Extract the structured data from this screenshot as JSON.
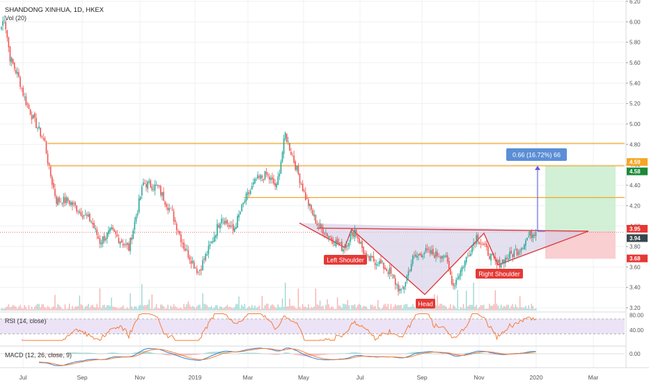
{
  "header": {
    "symbol_line": "SHANDONG XINHUA, 1D, HKEX",
    "volume_label": "Vol (20)"
  },
  "colors": {
    "up": "#26a69a",
    "down": "#ef5350",
    "orange_level": "#f6a623",
    "pattern_fill": "#d6cfe6",
    "pattern_line": "#e03a3e",
    "target_fill": "#c9edcf",
    "stop_fill": "#f8c7c9",
    "rsi_line": "#f57c36",
    "rsi_band": "#e8dcf5",
    "macd_line": "#3d7bc4",
    "signal_line": "#f57c36",
    "measure_box": "#5b8ed6",
    "grid": "#eef0f3"
  },
  "chart_data": [
    {
      "type": "candlestick",
      "title": "SHANDONG XINHUA, 1D, HKEX",
      "y_ticks": [
        "6.20",
        "6.00",
        "5.80",
        "5.60",
        "5.40",
        "5.20",
        "5.00",
        "4.80",
        "4.60",
        "4.40",
        "4.20",
        "4.00",
        "3.80",
        "3.60",
        "3.40",
        "3.20"
      ],
      "ylim": [
        3.17,
        6.22
      ],
      "x_ticks": [
        "Jul",
        "Sep",
        "Nov",
        "2019",
        "Mar",
        "May",
        "Jul",
        "Sep",
        "Nov",
        "2020",
        "Mar"
      ],
      "anchors": [
        {
          "t": 0,
          "v": 5.95
        },
        {
          "t": 2,
          "v": 6.05
        },
        {
          "t": 6,
          "v": 5.65
        },
        {
          "t": 12,
          "v": 5.45
        },
        {
          "t": 16,
          "v": 5.25
        },
        {
          "t": 22,
          "v": 5.05
        },
        {
          "t": 30,
          "v": 4.82
        },
        {
          "t": 33,
          "v": 4.55
        },
        {
          "t": 38,
          "v": 4.25
        },
        {
          "t": 46,
          "v": 4.25
        },
        {
          "t": 54,
          "v": 4.15
        },
        {
          "t": 62,
          "v": 4.05
        },
        {
          "t": 68,
          "v": 3.85
        },
        {
          "t": 76,
          "v": 3.95
        },
        {
          "t": 88,
          "v": 3.78
        },
        {
          "t": 98,
          "v": 4.42
        },
        {
          "t": 108,
          "v": 4.38
        },
        {
          "t": 118,
          "v": 4.12
        },
        {
          "t": 126,
          "v": 3.8
        },
        {
          "t": 136,
          "v": 3.55
        },
        {
          "t": 144,
          "v": 3.8
        },
        {
          "t": 152,
          "v": 4.1
        },
        {
          "t": 160,
          "v": 3.95
        },
        {
          "t": 168,
          "v": 4.25
        },
        {
          "t": 176,
          "v": 4.45
        },
        {
          "t": 183,
          "v": 4.5
        },
        {
          "t": 190,
          "v": 4.38
        },
        {
          "t": 196,
          "v": 4.9
        },
        {
          "t": 204,
          "v": 4.55
        },
        {
          "t": 210,
          "v": 4.28
        },
        {
          "t": 218,
          "v": 4.02
        },
        {
          "t": 228,
          "v": 3.88
        },
        {
          "t": 236,
          "v": 3.78
        },
        {
          "t": 244,
          "v": 3.96
        },
        {
          "t": 252,
          "v": 3.68
        },
        {
          "t": 260,
          "v": 3.65
        },
        {
          "t": 268,
          "v": 3.55
        },
        {
          "t": 276,
          "v": 3.34
        },
        {
          "t": 284,
          "v": 3.68
        },
        {
          "t": 292,
          "v": 3.75
        },
        {
          "t": 300,
          "v": 3.72
        },
        {
          "t": 306,
          "v": 3.72
        },
        {
          "t": 312,
          "v": 3.42
        },
        {
          "t": 320,
          "v": 3.65
        },
        {
          "t": 328,
          "v": 3.9
        },
        {
          "t": 334,
          "v": 3.78
        },
        {
          "t": 342,
          "v": 3.62
        },
        {
          "t": 350,
          "v": 3.7
        },
        {
          "t": 358,
          "v": 3.78
        },
        {
          "t": 364,
          "v": 3.9
        },
        {
          "t": 368,
          "v": 3.94
        }
      ],
      "levels": [
        {
          "value": 4.81,
          "label": "4.81",
          "kind": "orange"
        },
        {
          "value": 4.59,
          "label": "4.59",
          "kind": "orange"
        },
        {
          "value": 4.28,
          "label": "4.28",
          "kind": "orange"
        }
      ],
      "price_tags": [
        {
          "value": 4.59,
          "label": "4.59",
          "kind": "orange"
        },
        {
          "value": 4.58,
          "label": "4.58",
          "kind": "green"
        },
        {
          "value": 3.95,
          "label": "3.95",
          "kind": "red"
        },
        {
          "value": 3.94,
          "label": "3.94",
          "kind": "dark"
        },
        {
          "value": 3.68,
          "label": "3.68",
          "kind": "red"
        }
      ],
      "last_price": 3.94,
      "annotations": {
        "left_shoulder": "Left Shoulder",
        "head": "Head",
        "right_shoulder": "Right Shoulder",
        "measure": "0.66 (16.72%) 66"
      },
      "position": {
        "entry": 3.95,
        "target": 4.59,
        "stop": 3.68
      }
    },
    {
      "type": "line",
      "title": "RSI (14, close)",
      "y_ticks": [
        "80.00",
        "40.00"
      ],
      "ylim": [
        10,
        85
      ],
      "band": [
        30,
        70
      ]
    },
    {
      "type": "line",
      "title": "MACD (12, 26, close, 9)",
      "y_ticks": [
        "0.00"
      ],
      "series": [
        {
          "kind": "macd"
        },
        {
          "kind": "signal"
        }
      ]
    }
  ]
}
